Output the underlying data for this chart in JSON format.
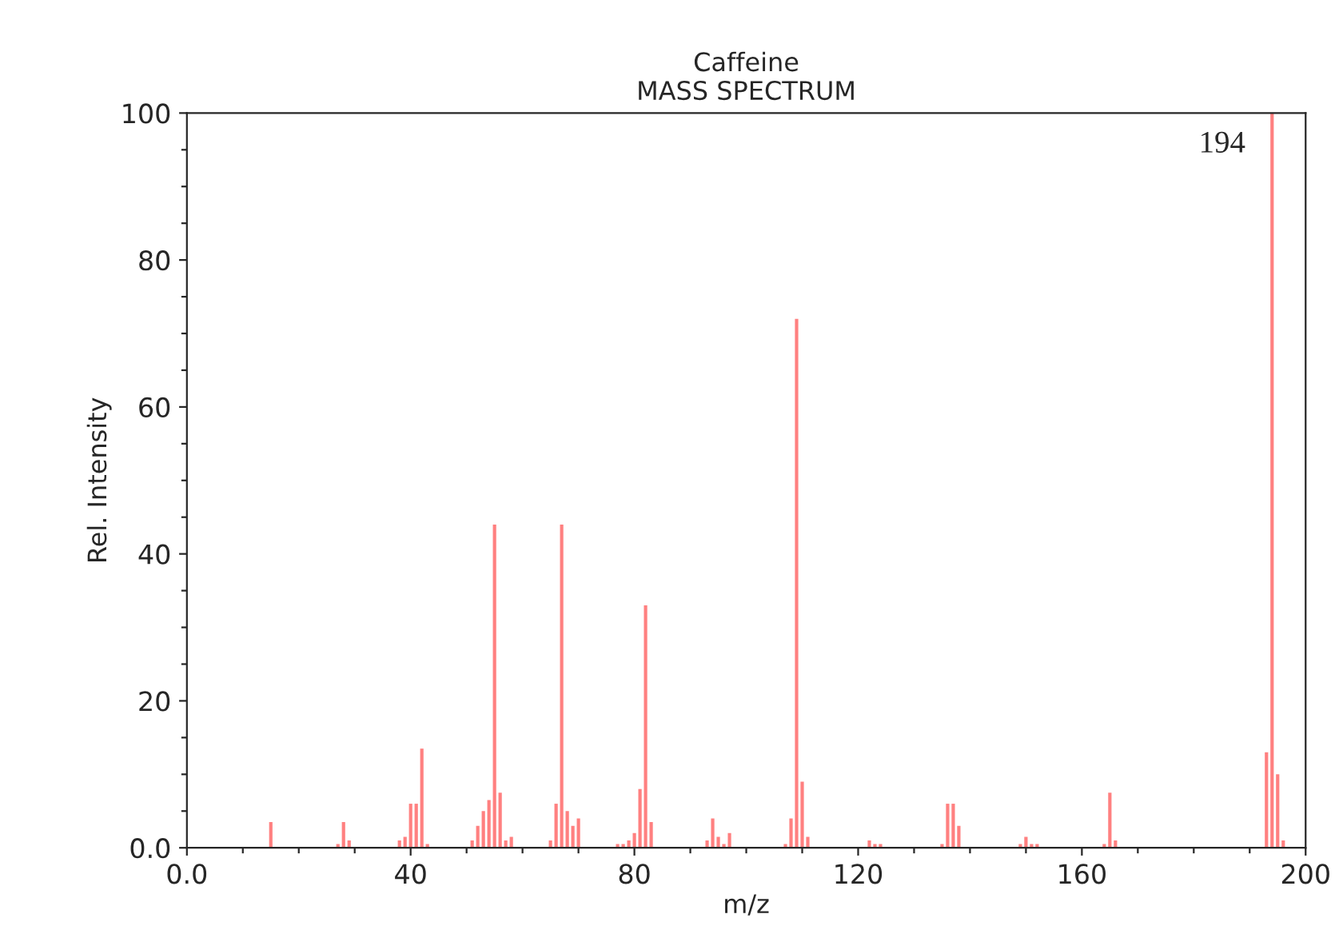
{
  "chart_data": {
    "type": "bar",
    "title": "Caffeine",
    "subtitle": "MASS SPECTRUM",
    "xlabel": "m/z",
    "ylabel": "Rel. Intensity",
    "x": [
      15,
      27,
      28,
      29,
      38,
      39,
      40,
      41,
      42,
      43,
      51,
      52,
      53,
      54,
      55,
      56,
      57,
      58,
      65,
      66,
      67,
      68,
      69,
      70,
      77,
      78,
      79,
      80,
      81,
      82,
      83,
      93,
      94,
      95,
      96,
      97,
      107,
      108,
      109,
      110,
      111,
      122,
      123,
      124,
      135,
      136,
      137,
      138,
      149,
      150,
      151,
      152,
      164,
      165,
      166,
      193,
      194,
      195,
      196
    ],
    "values": [
      3.5,
      0.5,
      3.5,
      1,
      1,
      1.5,
      6,
      6,
      13.5,
      0.5,
      1,
      3,
      5,
      6.5,
      44,
      7.5,
      1,
      1.5,
      1,
      6,
      44,
      5,
      3,
      4,
      0.5,
      0.5,
      1,
      2,
      8,
      33,
      3.5,
      1,
      4,
      1.5,
      0.5,
      2,
      0.5,
      4,
      72,
      9,
      1.5,
      1,
      0.5,
      0.5,
      0.5,
      6,
      6,
      3,
      0.5,
      1.5,
      0.5,
      0.5,
      0.5,
      7.5,
      1,
      13,
      100,
      10,
      1
    ],
    "color": "#ff8080",
    "annotations": [
      {
        "text": "194",
        "x": 194,
        "y": 100
      }
    ],
    "xlim": [
      0,
      200
    ],
    "ylim": [
      0,
      100
    ],
    "xticks": [
      {
        "value": 0,
        "label": "0.0"
      },
      {
        "value": 10,
        "label": null
      },
      {
        "value": 20,
        "label": null
      },
      {
        "value": 30,
        "label": null
      },
      40,
      {
        "value": 50,
        "label": null
      },
      {
        "value": 60,
        "label": null
      },
      {
        "value": 70,
        "label": null
      },
      80,
      {
        "value": 90,
        "label": null
      },
      {
        "value": 100,
        "label": null
      },
      {
        "value": 110,
        "label": null
      },
      120,
      {
        "value": 130,
        "label": null
      },
      {
        "value": 140,
        "label": null
      },
      {
        "value": 150,
        "label": null
      },
      160,
      {
        "value": 170,
        "label": null
      },
      {
        "value": 180,
        "label": null
      },
      {
        "value": 190,
        "label": null
      },
      200
    ],
    "yticks": [
      {
        "value": 0,
        "label": "0.0"
      },
      {
        "value": 5,
        "label": null
      },
      {
        "value": 10,
        "label": null
      },
      {
        "value": 15,
        "label": null
      },
      20,
      {
        "value": 25,
        "label": null
      },
      {
        "value": 30,
        "label": null
      },
      {
        "value": 35,
        "label": null
      },
      40,
      {
        "value": 45,
        "label": null
      },
      {
        "value": 50,
        "label": null
      },
      {
        "value": 55,
        "label": null
      },
      60,
      {
        "value": 65,
        "label": null
      },
      {
        "value": 70,
        "label": null
      },
      {
        "value": 75,
        "label": null
      },
      80,
      {
        "value": 85,
        "label": null
      },
      {
        "value": 90,
        "label": null
      },
      {
        "value": 95,
        "label": null
      },
      100
    ],
    "grid": false,
    "legend": false
  }
}
